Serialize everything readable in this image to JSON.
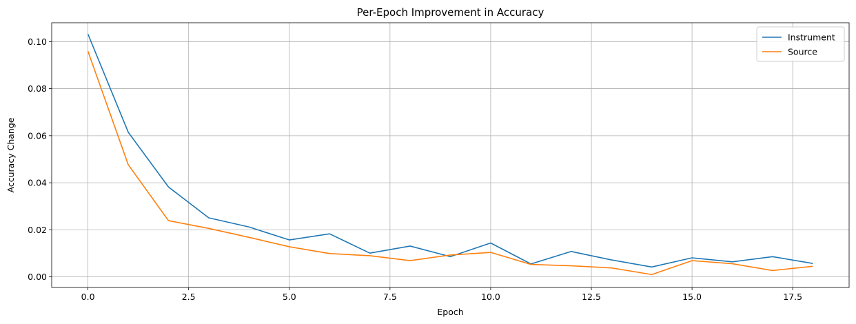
{
  "chart_data": {
    "type": "line",
    "title": "Per-Epoch Improvement in Accuracy",
    "xlabel": "Epoch",
    "ylabel": "Accuracy Change",
    "xlim": [
      -0.9,
      18.9
    ],
    "ylim": [
      -0.0045,
      0.108
    ],
    "xticks": [
      0.0,
      2.5,
      5.0,
      7.5,
      10.0,
      12.5,
      15.0,
      17.5
    ],
    "xtick_labels": [
      "0.0",
      "2.5",
      "5.0",
      "7.5",
      "10.0",
      "12.5",
      "15.0",
      "17.5"
    ],
    "yticks": [
      0.0,
      0.02,
      0.04,
      0.06,
      0.08,
      0.1
    ],
    "ytick_labels": [
      "0.00",
      "0.02",
      "0.04",
      "0.06",
      "0.08",
      "0.10"
    ],
    "grid": true,
    "legend_position": "top-right",
    "x": [
      0,
      1,
      2,
      3,
      4,
      5,
      6,
      7,
      8,
      9,
      10,
      11,
      12,
      13,
      14,
      15,
      16,
      17,
      18
    ],
    "series": [
      {
        "name": "Instrument",
        "color": "#1f77b4",
        "values": [
          0.1032,
          0.0615,
          0.0382,
          0.0251,
          0.0212,
          0.0157,
          0.0183,
          0.0101,
          0.0131,
          0.0086,
          0.0144,
          0.0055,
          0.0108,
          0.0072,
          0.0042,
          0.0081,
          0.0064,
          0.0086,
          0.0057
        ]
      },
      {
        "name": "Source",
        "color": "#ff7f0e",
        "values": [
          0.0959,
          0.0477,
          0.0239,
          0.0206,
          0.0168,
          0.0128,
          0.0099,
          0.009,
          0.0069,
          0.0093,
          0.0104,
          0.0053,
          0.0047,
          0.0038,
          0.001,
          0.0069,
          0.0056,
          0.0027,
          0.0045
        ]
      }
    ]
  }
}
